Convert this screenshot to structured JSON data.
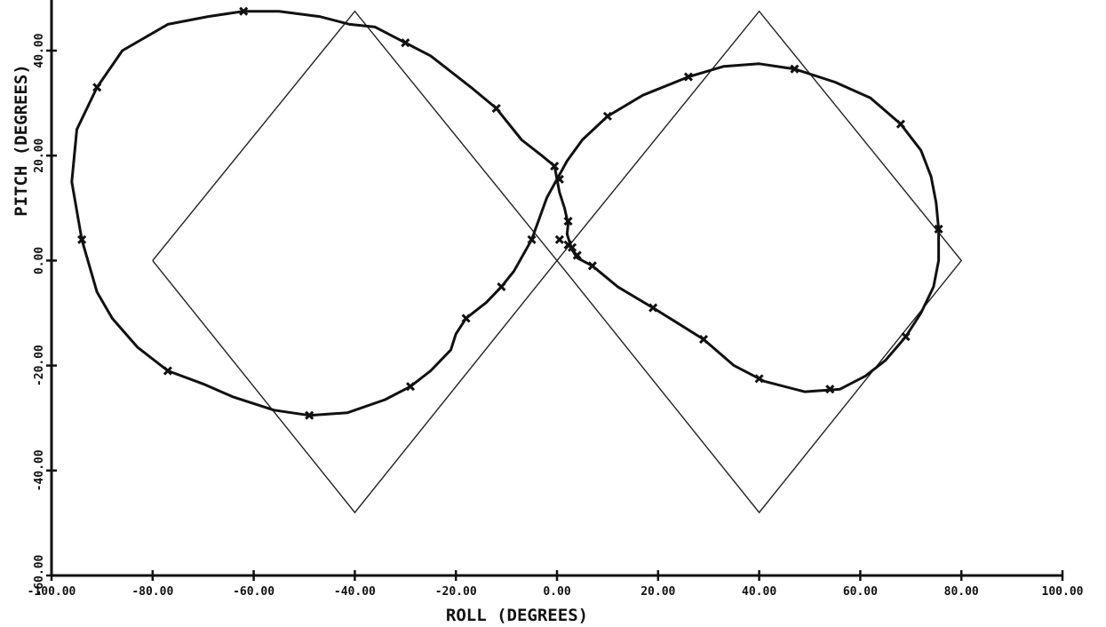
{
  "chart_data": {
    "type": "line",
    "title": "",
    "xlabel": "ROLL (DEGREES)",
    "ylabel": "PITCH (DEGREES)",
    "xlim": [
      -100,
      100
    ],
    "ylim": [
      -60,
      40
    ],
    "x_ticks": [
      -100,
      -80,
      -60,
      -40,
      -20,
      0,
      20,
      40,
      60,
      80,
      100
    ],
    "y_ticks": [
      -60,
      -40,
      -20,
      0,
      20,
      40
    ],
    "x_tick_labels": [
      "-100.00",
      "-80.00",
      "-60.00",
      "-40.00",
      "-20.00",
      "0.00",
      "20.00",
      "40.00",
      "60.00",
      "80.00",
      "100.00"
    ],
    "y_tick_labels": [
      "-60.00",
      "-40.00",
      "-20.00",
      "0.00",
      "20.00",
      "40.00"
    ],
    "grid": false,
    "legend": "none",
    "series": [
      {
        "style": "thin-line",
        "points": [
          [
            -80,
            0
          ],
          [
            -40,
            47.5
          ],
          [
            0,
            0
          ],
          [
            40,
            -48
          ],
          [
            80,
            0
          ],
          [
            40,
            47.5
          ],
          [
            0,
            0
          ],
          [
            -40,
            -48
          ],
          [
            -80,
            0
          ]
        ]
      },
      {
        "style": "thick-line-with-markers",
        "points": [
          [
            -0.5,
            18
          ],
          [
            0,
            15.5
          ],
          [
            -2,
            12
          ],
          [
            -5,
            4
          ],
          [
            -8.5,
            -2
          ],
          [
            -11,
            -5
          ],
          [
            -14,
            -8
          ],
          [
            -18,
            -11
          ],
          [
            -20,
            -14
          ],
          [
            -21,
            -17
          ],
          [
            -25,
            -21
          ],
          [
            -29,
            -24
          ],
          [
            -34,
            -26.5
          ],
          [
            -41.5,
            -29
          ],
          [
            -49,
            -29.5
          ],
          [
            -56,
            -28.5
          ],
          [
            -64,
            -26
          ],
          [
            -70,
            -23.5
          ],
          [
            -77,
            -21
          ],
          [
            -83,
            -16.5
          ],
          [
            -88,
            -11
          ],
          [
            -91,
            -6
          ],
          [
            -94,
            4
          ],
          [
            -96,
            15
          ],
          [
            -95,
            25
          ],
          [
            -91,
            33
          ],
          [
            -86,
            40
          ],
          [
            -77,
            45
          ],
          [
            -69,
            46.5
          ],
          [
            -62,
            47.5
          ],
          [
            -55,
            47.5
          ],
          [
            -47,
            46.5
          ],
          [
            -41,
            45
          ],
          [
            -36,
            44.5
          ],
          [
            -31,
            42
          ],
          [
            -25,
            39
          ],
          [
            -17,
            33
          ],
          [
            -12,
            29
          ],
          [
            -7,
            23
          ],
          [
            -3,
            20
          ],
          [
            -0.5,
            18
          ]
        ],
        "markers": [
          [
            -62,
            47.5
          ],
          [
            -30,
            41.5
          ],
          [
            -12,
            29
          ],
          [
            -0.5,
            18
          ],
          [
            -5,
            4
          ],
          [
            -11,
            -5
          ],
          [
            -18,
            -11
          ],
          [
            -29,
            -24
          ],
          [
            -49,
            -29.5
          ],
          [
            -77,
            -21
          ],
          [
            -94,
            4
          ],
          [
            -91,
            33
          ]
        ]
      },
      {
        "style": "thick-line-with-markers",
        "points": [
          [
            0,
            15.5
          ],
          [
            2,
            19
          ],
          [
            5,
            23
          ],
          [
            10,
            27.5
          ],
          [
            17,
            31.5
          ],
          [
            26,
            35
          ],
          [
            33,
            37
          ],
          [
            40,
            37.5
          ],
          [
            47,
            36.5
          ],
          [
            55,
            34
          ],
          [
            62,
            31
          ],
          [
            68,
            26
          ],
          [
            72,
            21
          ],
          [
            74,
            16
          ],
          [
            75,
            11
          ],
          [
            75.5,
            6
          ],
          [
            75.5,
            0
          ],
          [
            74.5,
            -5
          ],
          [
            72,
            -10
          ],
          [
            69,
            -14.5
          ],
          [
            65,
            -19
          ],
          [
            61,
            -22
          ],
          [
            56,
            -24.5
          ],
          [
            49,
            -25
          ],
          [
            41,
            -23
          ],
          [
            35,
            -20
          ],
          [
            29,
            -15
          ],
          [
            24,
            -12
          ],
          [
            19,
            -9
          ],
          [
            12,
            -5
          ],
          [
            7,
            -1
          ],
          [
            4,
            0.5
          ],
          [
            3,
            2
          ],
          [
            2.5,
            3.5
          ],
          [
            2,
            5
          ],
          [
            2.2,
            7
          ],
          [
            1.5,
            10
          ],
          [
            0.5,
            13
          ],
          [
            0,
            15.5
          ]
        ],
        "markers": [
          [
            0.5,
            15.5
          ],
          [
            10,
            27.5
          ],
          [
            26,
            35
          ],
          [
            47,
            36.5
          ],
          [
            68,
            26
          ],
          [
            75.5,
            6
          ],
          [
            69,
            -14.5
          ],
          [
            54,
            -24.5
          ],
          [
            40,
            -22.5
          ],
          [
            29,
            -15
          ],
          [
            19,
            -9
          ],
          [
            7,
            -1
          ],
          [
            4,
            1
          ],
          [
            3,
            2.5
          ],
          [
            2.2,
            3
          ],
          [
            0.5,
            4
          ],
          [
            2.2,
            7.5
          ]
        ]
      }
    ]
  },
  "ui": {
    "ink_color": "#111111",
    "background_color": "#ffffff",
    "marker_icon": "x-mark-icon"
  }
}
